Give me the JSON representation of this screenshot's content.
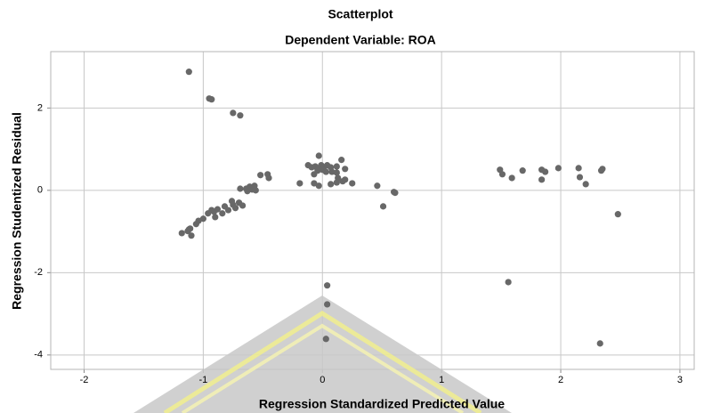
{
  "chart_data": {
    "type": "scatter",
    "title": "Scatterplot",
    "subtitle": "Dependent Variable: ROA",
    "x_label": "Regression Standardized Predicted Value",
    "y_label": "Regression Studentized Residual",
    "color": "#686868",
    "grid": true,
    "xlim": [
      -2.28,
      3.12
    ],
    "ylim": [
      -4.35,
      3.37
    ],
    "xticks": [
      -2,
      -1,
      0,
      1,
      2,
      3
    ],
    "yticks": [
      -4,
      -2,
      0,
      2
    ],
    "x": [
      -1.12,
      -0.95,
      -0.93,
      -0.75,
      -0.69,
      -1.18,
      -1.13,
      -1.11,
      -1.1,
      -1.12,
      -1.06,
      -1.04,
      -1.0,
      -0.96,
      -0.93,
      -0.91,
      -0.88,
      -0.9,
      -0.84,
      -0.82,
      -0.79,
      -0.75,
      -0.73,
      -0.7,
      -0.67,
      -0.76,
      -0.69,
      -0.64,
      -0.63,
      -0.61,
      -0.59,
      -0.57,
      -0.56,
      -0.52,
      -0.46,
      -0.45,
      -0.12,
      -0.09,
      -0.06,
      -0.04,
      -0.03,
      -0.01,
      0.01,
      0.04,
      0.07,
      0.12,
      0.16,
      0.19,
      -0.07,
      -0.04,
      0,
      0.03,
      0.08,
      0.12,
      0.13,
      0.17,
      0.19,
      0.25,
      -0.19,
      -0.07,
      -0.03,
      0.07,
      0.12,
      0.46,
      0.51,
      0.6,
      0.61,
      1.49,
      1.51,
      1.59,
      1.68,
      1.84,
      1.87,
      1.84,
      1.98,
      2.15,
      2.16,
      2.21,
      2.34,
      2.35,
      2.48,
      0.04,
      0.04,
      0.03,
      1.56,
      2.33
    ],
    "y": [
      2.88,
      2.23,
      2.21,
      1.88,
      1.82,
      -1.04,
      -0.99,
      -0.93,
      -1.1,
      -0.95,
      -0.82,
      -0.74,
      -0.69,
      -0.56,
      -0.48,
      -0.52,
      -0.46,
      -0.65,
      -0.56,
      -0.39,
      -0.48,
      -0.35,
      -0.43,
      -0.3,
      -0.37,
      -0.26,
      0.04,
      0.04,
      -0.02,
      0.09,
      0.02,
      0.11,
      0,
      0.37,
      0.39,
      0.3,
      0.61,
      0.56,
      0.58,
      0.52,
      0.84,
      0.61,
      0.56,
      0.61,
      0.56,
      0.58,
      0.74,
      0.52,
      0.39,
      0.48,
      0.5,
      0.45,
      0.45,
      0.43,
      0.3,
      0.22,
      0.26,
      0.17,
      0.17,
      0.17,
      0.11,
      0.15,
      0.19,
      0.11,
      -0.39,
      -0.04,
      -0.06,
      0.5,
      0.39,
      0.3,
      0.48,
      0.5,
      0.45,
      0.26,
      0.54,
      0.54,
      0.32,
      0.15,
      0.48,
      0.52,
      -0.58,
      -2.31,
      -2.77,
      -3.61,
      -2.23,
      -3.72
    ]
  }
}
